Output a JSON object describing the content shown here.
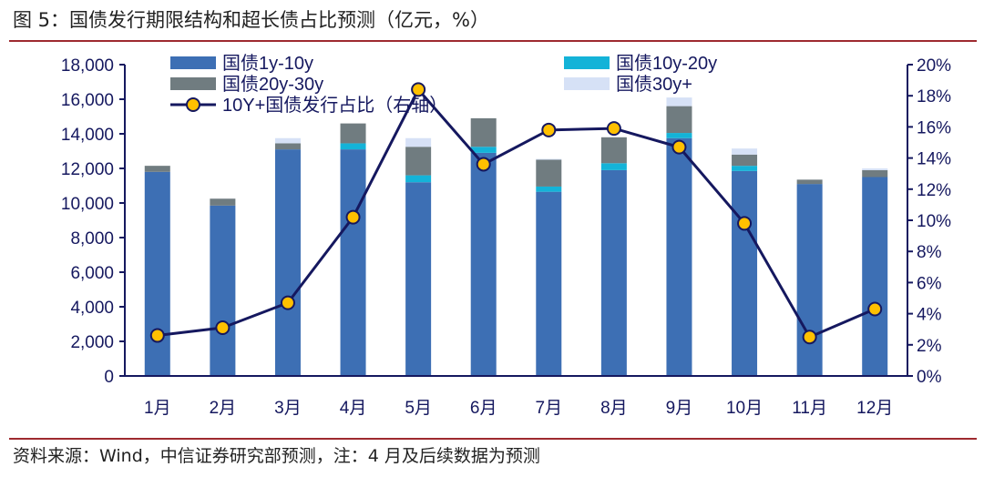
{
  "figure": {
    "title": "图 5：国债发行期限结构和超长债占比预测（亿元，%）",
    "source": "资料来源：Wind，中信证券研究部预测，注：4 月及后续数据为预测"
  },
  "colors": {
    "s1": "#3d6fb4",
    "s2": "#14b3d8",
    "s3": "#707c80",
    "s4": "#d6e1f6",
    "line": "#15185f",
    "marker": "#ffc000",
    "axis": "#15185f",
    "rule": "#9e2a2f"
  },
  "chart_data": {
    "type": "bar",
    "stacked": true,
    "categories": [
      "1月",
      "2月",
      "3月",
      "4月",
      "5月",
      "6月",
      "7月",
      "8月",
      "9月",
      "10月",
      "11月",
      "12月"
    ],
    "series": [
      {
        "name": "国债1y-10y",
        "axis": "left",
        "values": [
          11800,
          9850,
          13100,
          13100,
          11200,
          12900,
          10650,
          11900,
          13750,
          11850,
          11100,
          11500
        ]
      },
      {
        "name": "国债10y-20y",
        "axis": "left",
        "values": [
          0,
          0,
          0,
          350,
          400,
          350,
          300,
          400,
          300,
          300,
          0,
          0
        ]
      },
      {
        "name": "国债20y-30y",
        "axis": "left",
        "values": [
          350,
          400,
          350,
          1150,
          1650,
          1650,
          1550,
          1500,
          1550,
          650,
          250,
          400
        ]
      },
      {
        "name": "国债30y+",
        "axis": "left",
        "values": [
          0,
          0,
          300,
          0,
          500,
          0,
          50,
          0,
          500,
          350,
          0,
          100
        ]
      }
    ],
    "line": {
      "name": "10Y+国债发行占比（右轴）",
      "axis": "right",
      "values": [
        2.6,
        3.1,
        4.7,
        10.2,
        18.4,
        13.6,
        15.8,
        15.9,
        14.7,
        9.8,
        2.5,
        4.3
      ]
    },
    "y_left": {
      "min": 0,
      "max": 18000,
      "ticks": [
        "0",
        "2,000",
        "4,000",
        "6,000",
        "8,000",
        "10,000",
        "12,000",
        "14,000",
        "16,000",
        "18,000"
      ]
    },
    "y_right": {
      "min": 0,
      "max": 20,
      "ticks": [
        "0%",
        "2%",
        "4%",
        "6%",
        "8%",
        "10%",
        "12%",
        "14%",
        "16%",
        "18%",
        "20%"
      ]
    },
    "legend_position": "top"
  }
}
